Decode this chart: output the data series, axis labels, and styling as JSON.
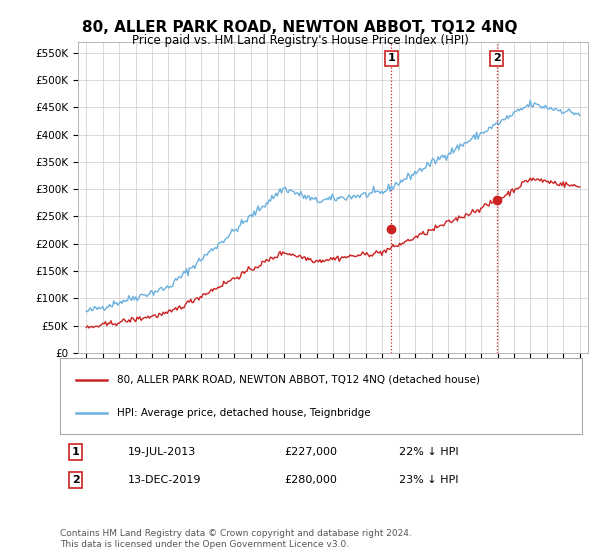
{
  "title": "80, ALLER PARK ROAD, NEWTON ABBOT, TQ12 4NQ",
  "subtitle": "Price paid vs. HM Land Registry's House Price Index (HPI)",
  "ylabel_ticks": [
    "£0",
    "£50K",
    "£100K",
    "£150K",
    "£200K",
    "£250K",
    "£300K",
    "£350K",
    "£400K",
    "£450K",
    "£500K",
    "£550K"
  ],
  "ytick_vals": [
    0,
    50000,
    100000,
    150000,
    200000,
    250000,
    300000,
    350000,
    400000,
    450000,
    500000,
    550000
  ],
  "ylim": [
    0,
    570000
  ],
  "hpi_color": "#6ab0de",
  "price_color": "#cc2222",
  "sale1_date_label": "19-JUL-2013",
  "sale1_price": 227000,
  "sale1_price_label": "£227,000",
  "sale1_pct_label": "22% ↓ HPI",
  "sale2_date_label": "13-DEC-2019",
  "sale2_price": 280000,
  "sale2_price_label": "£280,000",
  "sale2_pct_label": "23% ↓ HPI",
  "legend_line1": "80, ALLER PARK ROAD, NEWTON ABBOT, TQ12 4NQ (detached house)",
  "legend_line2": "HPI: Average price, detached house, Teignbridge",
  "footer": "Contains HM Land Registry data © Crown copyright and database right 2024.\nThis data is licensed under the Open Government Licence v3.0.",
  "background_color": "#ffffff",
  "plot_background": "#ffffff",
  "grid_color": "#cccccc",
  "vline_color": "#cc2222",
  "vline_style": ":",
  "sale1_x": 2013.54,
  "sale2_x": 2019.95,
  "xlim_left": 1994.5,
  "xlim_right": 2025.5
}
